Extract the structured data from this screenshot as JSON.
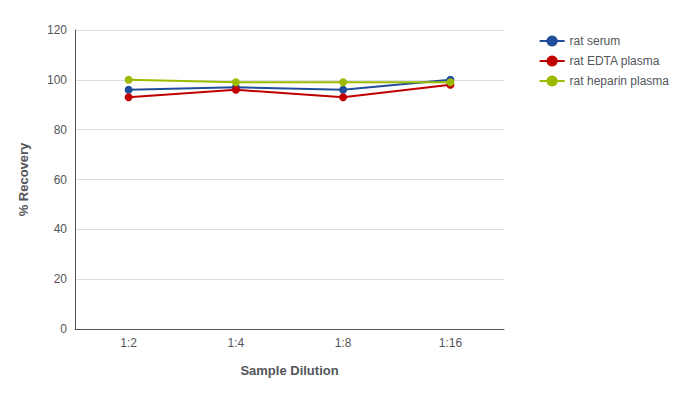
{
  "chart_data": {
    "type": "line",
    "categories": [
      "1:2",
      "1:4",
      "1:8",
      "1:16"
    ],
    "series": [
      {
        "name": "rat serum",
        "color": "#1f4e9c",
        "values": [
          96,
          97,
          96,
          100
        ]
      },
      {
        "name": "rat EDTA plasma",
        "color": "#c00000",
        "values": [
          93,
          96,
          93,
          98
        ]
      },
      {
        "name": "rat heparin plasma",
        "color": "#9cbb00",
        "values": [
          100,
          99,
          99,
          99
        ]
      }
    ],
    "xlabel": "Sample Dilution",
    "ylabel": "% Recovery",
    "ylim": [
      0,
      120
    ],
    "yticks": [
      0,
      20,
      40,
      60,
      80,
      100,
      120
    ],
    "grid": true,
    "legend": "right",
    "marker": "circle"
  }
}
